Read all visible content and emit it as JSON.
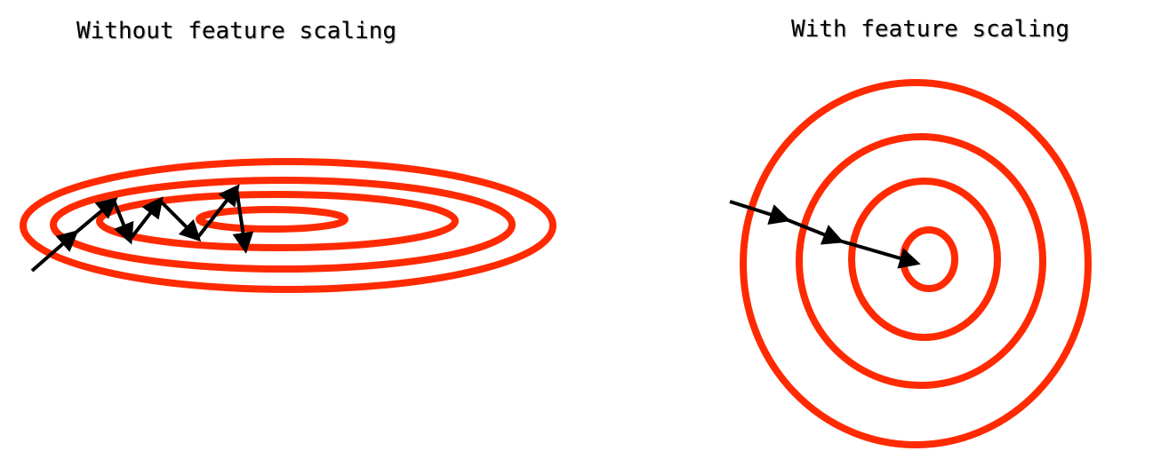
{
  "panels": {
    "left": {
      "title": "Without feature scaling",
      "contour_color": "#ff2a00",
      "contour_count": 4,
      "arrow_color": "#000000",
      "arrow_steps": 8
    },
    "right": {
      "title": "With feature scaling",
      "contour_color": "#ff2a00",
      "contour_count": 4,
      "arrow_color": "#000000",
      "arrow_steps": 3
    }
  }
}
